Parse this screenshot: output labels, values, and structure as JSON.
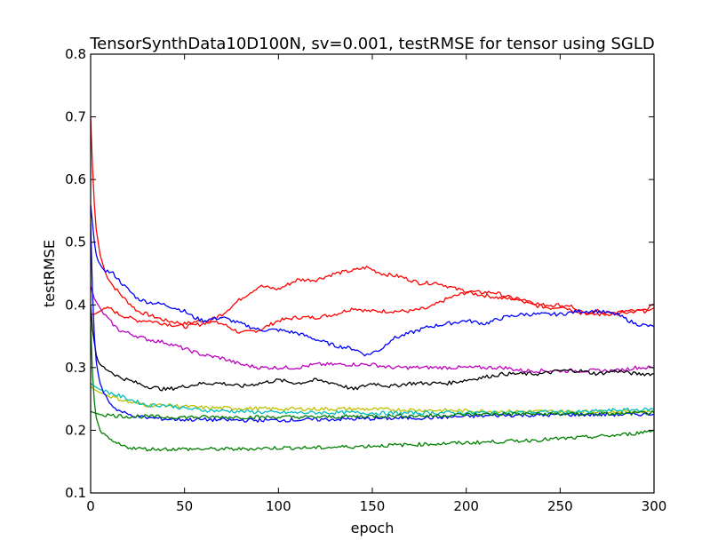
{
  "chart_data": {
    "type": "line",
    "title": "TensorSynthData10D100N, sv=0.001, testRMSE for tensor using SGLD",
    "xlabel": "epoch",
    "ylabel": "testRMSE",
    "xlim": [
      0,
      300
    ],
    "ylim": [
      0.1,
      0.8
    ],
    "xticks": [
      0,
      50,
      100,
      150,
      200,
      250,
      300
    ],
    "yticks": [
      0.1,
      0.2,
      0.3,
      0.4,
      0.5,
      0.6,
      0.7,
      0.8
    ],
    "xtick_labels": [
      "0",
      "50",
      "100",
      "150",
      "200",
      "250",
      "300"
    ],
    "ytick_labels": [
      "0.1",
      "0.2",
      "0.3",
      "0.4",
      "0.5",
      "0.6",
      "0.7",
      "0.8"
    ],
    "grid": false,
    "series": [
      {
        "color": "#ff0000",
        "x": [
          0,
          1,
          2,
          3,
          5,
          8,
          12,
          18,
          25,
          30,
          40,
          50,
          60,
          70,
          80,
          90,
          100,
          110,
          120,
          130,
          140,
          148,
          160,
          170,
          180,
          190,
          200,
          210,
          220,
          230,
          240,
          250,
          260,
          270,
          280,
          290,
          300
        ],
        "y": [
          0.7,
          0.62,
          0.56,
          0.52,
          0.48,
          0.45,
          0.43,
          0.41,
          0.39,
          0.385,
          0.375,
          0.37,
          0.375,
          0.37,
          0.355,
          0.36,
          0.375,
          0.38,
          0.38,
          0.385,
          0.395,
          0.39,
          0.39,
          0.39,
          0.395,
          0.41,
          0.42,
          0.415,
          0.41,
          0.41,
          0.4,
          0.4,
          0.385,
          0.39,
          0.385,
          0.39,
          0.395
        ]
      },
      {
        "color": "#ff0000",
        "x": [
          0,
          2,
          5,
          10,
          15,
          20,
          25,
          30,
          40,
          50,
          60,
          70,
          80,
          90,
          100,
          110,
          120,
          130,
          140,
          147,
          155,
          165,
          175,
          185,
          195,
          205,
          215,
          225,
          235,
          245,
          255,
          265,
          275,
          285,
          295,
          300
        ],
        "y": [
          0.385,
          0.385,
          0.39,
          0.395,
          0.385,
          0.38,
          0.375,
          0.375,
          0.37,
          0.365,
          0.37,
          0.385,
          0.41,
          0.43,
          0.425,
          0.44,
          0.44,
          0.45,
          0.455,
          0.46,
          0.45,
          0.445,
          0.435,
          0.435,
          0.425,
          0.42,
          0.42,
          0.41,
          0.4,
          0.395,
          0.4,
          0.385,
          0.385,
          0.39,
          0.39,
          0.4
        ]
      },
      {
        "color": "#0000ff",
        "x": [
          0,
          1,
          2,
          3,
          4,
          6,
          8,
          12,
          18,
          25,
          30,
          40,
          50,
          55,
          60,
          70,
          80,
          90,
          100,
          110,
          120,
          130,
          140,
          147,
          155,
          160,
          170,
          180,
          190,
          200,
          210,
          220,
          230,
          240,
          250,
          260,
          270,
          280,
          290,
          300
        ],
        "y": [
          0.56,
          0.53,
          0.5,
          0.48,
          0.47,
          0.46,
          0.455,
          0.45,
          0.43,
          0.41,
          0.405,
          0.4,
          0.39,
          0.38,
          0.375,
          0.38,
          0.37,
          0.36,
          0.36,
          0.355,
          0.345,
          0.335,
          0.33,
          0.32,
          0.33,
          0.345,
          0.355,
          0.365,
          0.37,
          0.375,
          0.37,
          0.38,
          0.385,
          0.385,
          0.385,
          0.39,
          0.39,
          0.385,
          0.37,
          0.365
        ]
      },
      {
        "color": "#bf00bf",
        "x": [
          0,
          1,
          2,
          4,
          6,
          10,
          15,
          20,
          25,
          30,
          40,
          50,
          60,
          70,
          80,
          90,
          100,
          110,
          120,
          130,
          140,
          150,
          160,
          170,
          180,
          190,
          200,
          210,
          220,
          230,
          240,
          250,
          260,
          270,
          280,
          290,
          300
        ],
        "y": [
          0.43,
          0.42,
          0.41,
          0.4,
          0.39,
          0.375,
          0.36,
          0.355,
          0.35,
          0.345,
          0.34,
          0.33,
          0.32,
          0.315,
          0.305,
          0.3,
          0.3,
          0.3,
          0.305,
          0.305,
          0.305,
          0.305,
          0.3,
          0.3,
          0.3,
          0.3,
          0.3,
          0.3,
          0.3,
          0.295,
          0.295,
          0.295,
          0.295,
          0.295,
          0.295,
          0.3,
          0.3
        ]
      },
      {
        "color": "#000000",
        "x": [
          0,
          1,
          2,
          3,
          4,
          5,
          7,
          10,
          15,
          20,
          25,
          30,
          40,
          50,
          60,
          70,
          80,
          90,
          100,
          110,
          120,
          130,
          140,
          150,
          160,
          170,
          180,
          190,
          200,
          210,
          220,
          230,
          240,
          250,
          260,
          270,
          280,
          290,
          300
        ],
        "y": [
          0.4,
          0.36,
          0.34,
          0.32,
          0.31,
          0.305,
          0.3,
          0.295,
          0.285,
          0.28,
          0.275,
          0.27,
          0.265,
          0.27,
          0.275,
          0.275,
          0.27,
          0.275,
          0.28,
          0.275,
          0.28,
          0.275,
          0.265,
          0.275,
          0.27,
          0.275,
          0.275,
          0.275,
          0.28,
          0.285,
          0.29,
          0.29,
          0.29,
          0.295,
          0.295,
          0.29,
          0.295,
          0.29,
          0.29
        ]
      },
      {
        "color": "#bfbf00",
        "x": [
          0,
          2,
          5,
          10,
          15,
          20,
          30,
          40,
          50,
          60,
          80,
          100,
          120,
          140,
          160,
          180,
          200,
          220,
          240,
          260,
          280,
          300
        ],
        "y": [
          0.27,
          0.265,
          0.26,
          0.255,
          0.25,
          0.245,
          0.24,
          0.24,
          0.238,
          0.236,
          0.235,
          0.234,
          0.234,
          0.234,
          0.233,
          0.232,
          0.231,
          0.23,
          0.23,
          0.23,
          0.23,
          0.23
        ]
      },
      {
        "color": "#00bfbf",
        "x": [
          0,
          2,
          5,
          10,
          15,
          20,
          25,
          30,
          40,
          50,
          60,
          80,
          100,
          120,
          140,
          160,
          180,
          200,
          220,
          240,
          260,
          280,
          300
        ],
        "y": [
          0.275,
          0.27,
          0.265,
          0.26,
          0.255,
          0.25,
          0.245,
          0.24,
          0.24,
          0.235,
          0.232,
          0.23,
          0.228,
          0.228,
          0.228,
          0.227,
          0.228,
          0.228,
          0.228,
          0.229,
          0.229,
          0.232,
          0.233
        ]
      },
      {
        "color": "#0000ff",
        "x": [
          0,
          1,
          2,
          3,
          4,
          5,
          7,
          10,
          13,
          16,
          20,
          25,
          30,
          40,
          50,
          60,
          80,
          100,
          120,
          140,
          160,
          180,
          200,
          220,
          240,
          260,
          280,
          300
        ],
        "y": [
          0.53,
          0.42,
          0.35,
          0.31,
          0.29,
          0.275,
          0.26,
          0.245,
          0.235,
          0.23,
          0.225,
          0.222,
          0.22,
          0.218,
          0.217,
          0.217,
          0.216,
          0.216,
          0.217,
          0.218,
          0.219,
          0.22,
          0.222,
          0.224,
          0.224,
          0.225,
          0.225,
          0.226
        ]
      },
      {
        "color": "#008000",
        "x": [
          0,
          1,
          2,
          3,
          4,
          5,
          10,
          20,
          30,
          40,
          50,
          60,
          80,
          100,
          120,
          140,
          160,
          180,
          200,
          220,
          240,
          260,
          280,
          300
        ],
        "y": [
          0.23,
          0.229,
          0.228,
          0.227,
          0.226,
          0.225,
          0.224,
          0.222,
          0.222,
          0.221,
          0.221,
          0.221,
          0.221,
          0.221,
          0.221,
          0.222,
          0.223,
          0.223,
          0.225,
          0.226,
          0.226,
          0.226,
          0.226,
          0.228
        ]
      },
      {
        "color": "#008000",
        "x": [
          0,
          1,
          2,
          3,
          4,
          5,
          6,
          8,
          10,
          13,
          16,
          20,
          25,
          30,
          40,
          50,
          60,
          80,
          100,
          120,
          140,
          160,
          180,
          200,
          220,
          240,
          260,
          280,
          290,
          300
        ],
        "y": [
          0.37,
          0.29,
          0.245,
          0.22,
          0.21,
          0.2,
          0.195,
          0.19,
          0.185,
          0.18,
          0.176,
          0.173,
          0.171,
          0.17,
          0.17,
          0.17,
          0.17,
          0.17,
          0.172,
          0.172,
          0.174,
          0.176,
          0.178,
          0.18,
          0.182,
          0.185,
          0.188,
          0.192,
          0.195,
          0.2
        ]
      }
    ]
  }
}
